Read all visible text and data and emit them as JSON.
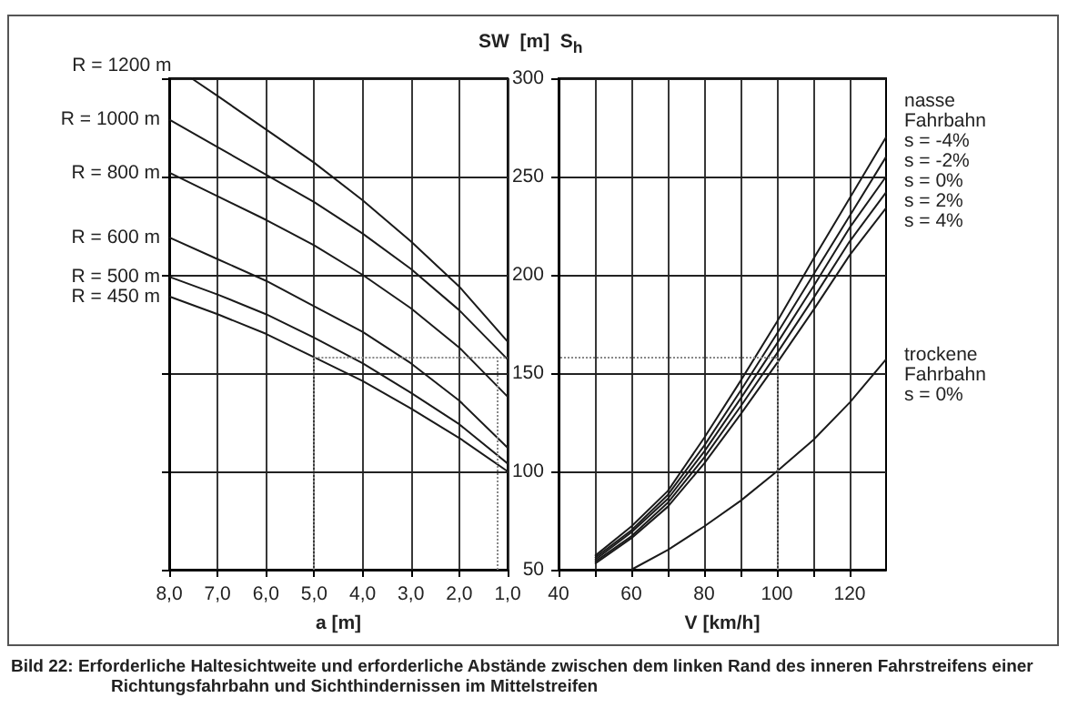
{
  "chart_data": [
    {
      "type": "line",
      "xlabel": "a [m]",
      "xlim": [
        8,
        1
      ],
      "xticks": [
        {
          "value": 8,
          "label": "8,0"
        },
        {
          "value": 7,
          "label": "7,0"
        },
        {
          "value": 6,
          "label": "6,0"
        },
        {
          "value": 5,
          "label": "5,0"
        },
        {
          "value": 4,
          "label": "4,0"
        },
        {
          "value": 3,
          "label": "3,0"
        },
        {
          "value": 2,
          "label": "2,0"
        },
        {
          "value": 1,
          "label": "1,0"
        }
      ],
      "ylim": [
        50,
        300
      ],
      "yticks": [
        50,
        100,
        150,
        200,
        250,
        300
      ],
      "tick_labels": "x",
      "grid": true,
      "series": [
        {
          "name": "R = 1200 m",
          "color": "#1a1a1a",
          "x": [
            7.54,
            7,
            6,
            5,
            4,
            3,
            2,
            1
          ],
          "values": [
            300,
            291,
            274,
            257,
            238,
            217,
            194,
            166
          ]
        },
        {
          "name": "R = 1000 m",
          "color": "#1a1a1a",
          "x": [
            8,
            7,
            6,
            5,
            4,
            3,
            2,
            1
          ],
          "values": [
            279,
            265,
            251,
            237,
            221,
            203,
            182,
            157
          ]
        },
        {
          "name": "R = 800 m",
          "color": "#1a1a1a",
          "x": [
            8,
            7,
            6,
            5,
            4,
            3,
            2,
            1
          ],
          "values": [
            252,
            240,
            228,
            215,
            200,
            183,
            163,
            138
          ]
        },
        {
          "name": "R = 600 m",
          "color": "#1a1a1a",
          "x": [
            8,
            7,
            6,
            5,
            4,
            3,
            2,
            1
          ],
          "values": [
            219,
            208,
            197,
            184,
            171,
            155,
            136,
            112
          ]
        },
        {
          "name": "R = 500 m",
          "color": "#1a1a1a",
          "x": [
            8,
            7,
            6,
            5,
            4,
            3,
            2,
            1
          ],
          "values": [
            199,
            190,
            180,
            168,
            155,
            140,
            124,
            104
          ]
        },
        {
          "name": "R = 450 m",
          "color": "#1a1a1a",
          "x": [
            8,
            7,
            6,
            5,
            4,
            3,
            2,
            1
          ],
          "values": [
            189,
            180,
            170,
            158,
            146,
            132,
            117,
            100
          ]
        }
      ],
      "ref_lines": [
        {
          "axis": "y",
          "value": 158,
          "color": "#888888",
          "line_style": "dotted"
        },
        {
          "axis": "x",
          "value": 5,
          "color": "#888888",
          "line_style": "dotted"
        },
        {
          "axis": "x",
          "value": 1.2,
          "color": "#888888",
          "line_style": "dotted"
        }
      ],
      "annotations": [
        "Bild 22: Erforderliche Haltesichtweite und erforderliche Abstände zwischen dem linken Rand des inneren Fahrstreifens einer Richtungsfahrbahn und Sichthindernissen im Mittelstreifen"
      ]
    },
    {
      "type": "line",
      "xlabel": "V [km/h]",
      "ylabel": "SW  [m]  S$_{h}$",
      "legend_title": "nasse Fahrbahn",
      "xlim": [
        40,
        130
      ],
      "xticks": [
        40,
        {
          "value": 50,
          "label": null
        },
        60,
        {
          "value": 70,
          "label": null
        },
        80,
        {
          "value": 90,
          "label": null
        },
        100,
        {
          "value": 110,
          "label": null
        },
        120
      ],
      "ylim": [
        50,
        300
      ],
      "yticks": [
        50,
        100,
        150,
        200,
        250,
        300
      ],
      "grid": true,
      "series": [
        {
          "name": "s = -4%",
          "color": "#1a1a1a",
          "x": [
            50,
            60,
            70,
            80,
            90,
            100,
            110,
            120,
            130
          ],
          "values": [
            57,
            72,
            90,
            117,
            146,
            176,
            208,
            239,
            270
          ]
        },
        {
          "name": "s = -2%",
          "color": "#1a1a1a",
          "x": [
            50,
            60,
            70,
            80,
            90,
            100,
            110,
            120,
            130
          ],
          "values": [
            56,
            70,
            88,
            113,
            141,
            170,
            200,
            230,
            260
          ]
        },
        {
          "name": "s = 0%",
          "color": "#1a1a1a",
          "x": [
            50,
            60,
            70,
            80,
            90,
            100,
            110,
            120,
            130
          ],
          "values": [
            55,
            69,
            86,
            110,
            137,
            165,
            194,
            224,
            250
          ]
        },
        {
          "name": "s = 2%",
          "color": "#1a1a1a",
          "x": [
            50,
            60,
            70,
            80,
            90,
            100,
            110,
            120,
            130
          ],
          "values": [
            54,
            67,
            84,
            107,
            133,
            160,
            188,
            217,
            242
          ]
        },
        {
          "name": "s = 4%",
          "color": "#1a1a1a",
          "x": [
            50,
            60,
            70,
            80,
            90,
            100,
            110,
            120,
            130
          ],
          "values": [
            53,
            66,
            82,
            104,
            129,
            155,
            182,
            210,
            234
          ]
        },
        {
          "name": "trockene Fahrbahn s = 0%",
          "color": "#1a1a1a",
          "x": [
            60,
            70,
            80,
            90,
            100,
            110,
            120,
            130
          ],
          "values": [
            50,
            60,
            72,
            85,
            100,
            116,
            135,
            157
          ]
        }
      ],
      "ref_lines": [
        {
          "axis": "y",
          "value": 158,
          "color": "#888888",
          "line_style": "dotted"
        },
        {
          "axis": "x",
          "value": 100,
          "color": "#888888",
          "line_style": "dotted"
        }
      ]
    }
  ]
}
